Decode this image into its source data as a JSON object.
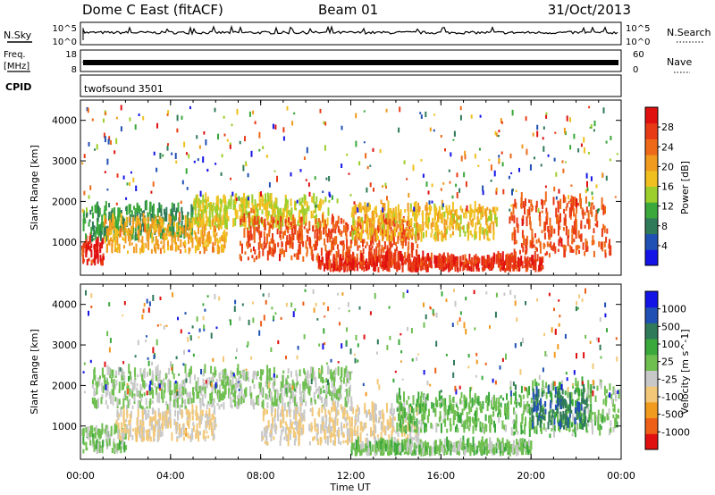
{
  "header": {
    "station": "Dome C East (fitACF)",
    "beam": "Beam 01",
    "date": "31/Oct/2013"
  },
  "strip": {
    "nsky_label": "N.Sky",
    "nsky_top": "10^5",
    "nsky_bottom": "10^0",
    "nsearch_label": "N.Search",
    "nsearch_top": "10^5",
    "nsearch_bottom": "10^0",
    "freq_label": "Freq.",
    "freq_unit": "[MHz]",
    "freq_top": "18",
    "freq_bottom": "8",
    "nave_label": "Nave",
    "nave_top": "60",
    "nave_bottom": "0",
    "cpid_label": "CPID",
    "cpid_value": "twofsound 3501"
  },
  "chart_data": [
    {
      "type": "heatmap",
      "title": "",
      "quantity": "Power",
      "unit": "dB",
      "ylabel": "Slant Range [km]",
      "xlabel": "",
      "ylim": [
        180,
        4500
      ],
      "yticks": [
        "1000",
        "2000",
        "3000",
        "4000"
      ],
      "xlim": [
        "00:00",
        "24:00"
      ],
      "colorbar": {
        "label": "Power [dB]",
        "ticks": [
          "4",
          "8",
          "12",
          "16",
          "20",
          "24",
          "28"
        ],
        "range": [
          0,
          32
        ],
        "colors": [
          "#1414e6",
          "#2050b4",
          "#2f7a58",
          "#3aa83a",
          "#9ccf2c",
          "#f0c020",
          "#f09a1e",
          "#ee6a18",
          "#e83a14",
          "#e01010"
        ]
      },
      "regions": [
        {
          "t0": 0.0,
          "t1": 1.0,
          "r0": 400,
          "r1": 1000,
          "value": 28
        },
        {
          "t0": 0.0,
          "t1": 5.0,
          "r0": 1000,
          "r1": 1800,
          "value": 10
        },
        {
          "t0": 1.0,
          "t1": 6.5,
          "r0": 700,
          "r1": 1500,
          "value": 20
        },
        {
          "t0": 5.0,
          "t1": 11.0,
          "r0": 1300,
          "r1": 2000,
          "value": 16
        },
        {
          "t0": 7.0,
          "t1": 15.0,
          "r0": 500,
          "r1": 1500,
          "value": 26
        },
        {
          "t0": 10.5,
          "t1": 20.5,
          "r0": 250,
          "r1": 550,
          "value": 28
        },
        {
          "t0": 12.0,
          "t1": 18.5,
          "r0": 1000,
          "r1": 1800,
          "value": 18
        },
        {
          "t0": 19.0,
          "t1": 23.5,
          "r0": 600,
          "r1": 2000,
          "value": 26
        }
      ]
    },
    {
      "type": "heatmap",
      "title": "",
      "quantity": "Velocity",
      "unit": "m s^-1",
      "ylabel": "Slant Range [km]",
      "xlabel": "Time UT",
      "ylim": [
        180,
        4500
      ],
      "yticks": [
        "1000",
        "2000",
        "3000",
        "4000"
      ],
      "xticks": [
        "00:00",
        "04:00",
        "08:00",
        "12:00",
        "16:00",
        "20:00",
        "00:00"
      ],
      "xlim": [
        "00:00",
        "24:00"
      ],
      "colorbar": {
        "label": "Velocity [m s^-1]",
        "ticks": [
          "1000",
          "500",
          "100",
          "25",
          "-25",
          "-100",
          "-500",
          "-1000"
        ],
        "range": [
          -1300,
          1300
        ],
        "colors": [
          "#e01010",
          "#ee6018",
          "#f09a1e",
          "#f2c878",
          "#c8c8c8",
          "#6fbf50",
          "#3aa83a",
          "#2f7a58",
          "#2050b4",
          "#1414e6"
        ]
      },
      "regions": [
        {
          "t0": 0.0,
          "t1": 2.0,
          "r0": 300,
          "r1": 900,
          "value": 80
        },
        {
          "t0": 1.5,
          "t1": 6.0,
          "r0": 600,
          "r1": 1300,
          "value": -300
        },
        {
          "t0": 0.5,
          "t1": 12.0,
          "r0": 1400,
          "r1": 2300,
          "value": 0
        },
        {
          "t0": 8.0,
          "t1": 15.0,
          "r0": 500,
          "r1": 1400,
          "value": -250
        },
        {
          "t0": 12.0,
          "t1": 20.0,
          "r0": 250,
          "r1": 500,
          "value": 120
        },
        {
          "t0": 14.0,
          "t1": 19.0,
          "r0": 800,
          "r1": 1700,
          "value": 200
        },
        {
          "t0": 19.0,
          "t1": 24.0,
          "r0": 700,
          "r1": 2000,
          "value": 120
        },
        {
          "t0": 20.0,
          "t1": 22.5,
          "r0": 900,
          "r1": 1800,
          "value": 700
        }
      ]
    }
  ]
}
